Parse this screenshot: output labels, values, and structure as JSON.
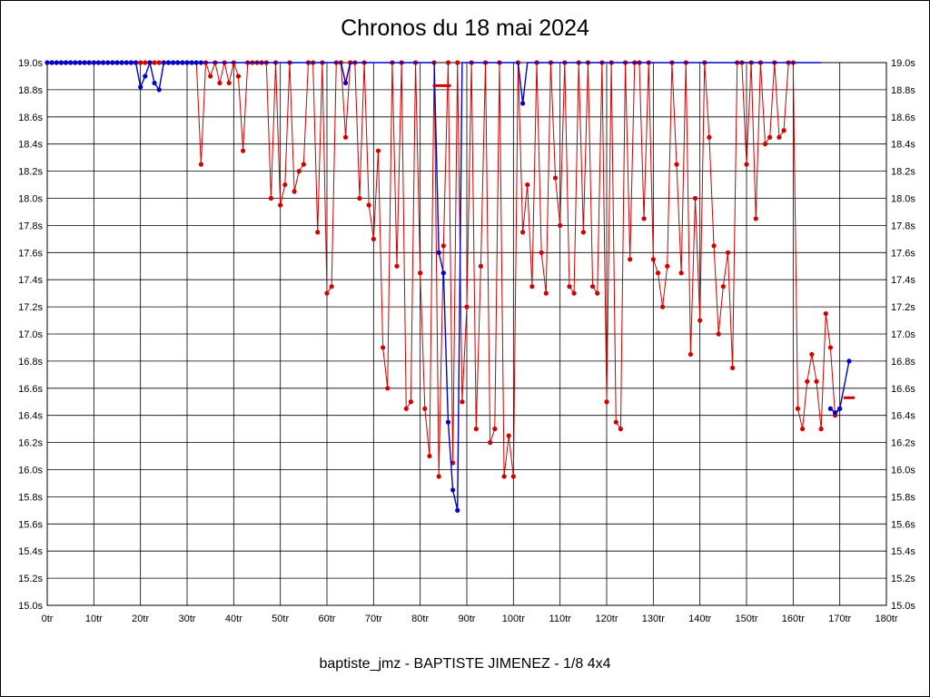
{
  "title": "Chronos du 18 mai 2024",
  "footer": {
    "caption": "baptiste_jmz - BAPTISTE JIMENEZ - 1/8 4x4"
  },
  "chart_data": {
    "type": "line",
    "title": "Chronos du 18 mai 2024",
    "x_unit": "tr",
    "y_unit": "s",
    "xlim": [
      0,
      180
    ],
    "ylim": [
      15.0,
      19.0
    ],
    "y_step": 0.2,
    "grid": true,
    "x_ticks": [
      "0tr",
      "10tr",
      "20tr",
      "30tr",
      "40tr",
      "50tr",
      "60tr",
      "70tr",
      "80tr",
      "90tr",
      "100tr",
      "110tr",
      "120tr",
      "130tr",
      "140tr",
      "150tr",
      "160tr",
      "170tr",
      "180tr"
    ],
    "y_ticks": [
      "19.0s",
      "18.8s",
      "18.6s",
      "18.4s",
      "18.2s",
      "18.0s",
      "17.8s",
      "17.6s",
      "17.4s",
      "17.2s",
      "17.0s",
      "16.8s",
      "16.6s",
      "16.4s",
      "16.2s",
      "16.0s",
      "15.8s",
      "15.6s",
      "15.4s",
      "15.2s",
      "15.0s"
    ],
    "colors": {
      "grid": "#000000",
      "red": "#d10000",
      "blue": "#0000cd"
    },
    "series": [
      {
        "name": "lap-times-red",
        "color": "#d10000",
        "values": [
          19,
          19,
          19,
          19,
          19,
          19,
          19,
          19,
          19,
          19,
          19,
          19,
          19,
          19,
          19,
          19,
          19,
          19,
          19,
          19,
          19,
          19,
          19,
          19,
          19,
          19,
          19,
          19,
          19,
          19,
          19,
          19,
          19,
          18.25,
          19,
          18.9,
          19,
          18.85,
          19,
          18.85,
          19,
          18.9,
          18.35,
          19,
          19,
          19,
          19,
          19,
          18.0,
          19,
          17.95,
          18.1,
          19,
          18.05,
          18.2,
          18.25,
          19,
          19,
          17.75,
          19,
          17.3,
          17.35,
          19,
          19,
          18.45,
          19,
          19,
          18.0,
          19,
          17.95,
          17.7,
          18.35,
          16.9,
          16.6,
          19,
          17.5,
          19,
          16.45,
          16.5,
          19,
          17.45,
          16.45,
          16.1,
          19,
          15.95,
          17.65,
          19,
          16.05,
          19,
          16.5,
          17.2,
          19,
          16.3,
          17.5,
          19,
          16.2,
          16.3,
          19,
          15.95,
          16.25,
          15.95,
          19,
          17.75,
          18.1,
          17.35,
          19,
          17.6,
          17.3,
          19,
          18.15,
          17.8,
          19,
          17.35,
          17.3,
          19,
          17.75,
          19,
          17.35,
          17.3,
          19,
          16.5,
          19,
          16.35,
          16.3,
          19,
          17.55,
          19,
          19,
          17.85,
          19,
          17.55,
          17.45,
          17.2,
          17.5,
          19,
          18.25,
          17.45,
          19,
          16.85,
          18.0,
          17.1,
          19,
          18.45,
          17.65,
          17.0,
          17.35,
          17.6,
          16.75,
          19,
          19,
          18.25,
          19,
          17.85,
          19,
          18.4,
          18.45,
          19,
          18.45,
          18.5,
          19,
          19,
          16.45,
          16.3,
          16.65,
          16.85,
          16.65,
          16.3,
          17.15,
          16.9,
          16.4,
          16.45
        ]
      },
      {
        "name": "lap-times-blue",
        "color": "#0000cd",
        "segments": [
          [
            [
              0,
              19,
              1
            ],
            [
              1,
              19,
              1
            ],
            [
              2,
              19,
              1
            ],
            [
              3,
              19,
              1
            ],
            [
              4,
              19,
              1
            ],
            [
              5,
              19,
              1
            ],
            [
              6,
              19,
              1
            ],
            [
              7,
              19,
              1
            ],
            [
              8,
              19,
              1
            ],
            [
              9,
              19,
              1
            ],
            [
              10,
              19,
              1
            ],
            [
              11,
              19,
              1
            ],
            [
              12,
              19,
              1
            ],
            [
              13,
              19,
              1
            ],
            [
              14,
              19,
              1
            ],
            [
              15,
              19,
              1
            ],
            [
              16,
              19,
              1
            ],
            [
              17,
              19,
              1
            ],
            [
              18,
              19,
              1
            ],
            [
              19,
              19,
              1
            ],
            [
              20,
              18.82,
              1
            ],
            [
              21,
              18.9,
              1
            ],
            [
              22,
              19,
              1
            ],
            [
              23,
              18.85,
              1
            ],
            [
              24,
              18.8,
              1
            ],
            [
              25,
              19,
              1
            ],
            [
              26,
              19,
              1
            ],
            [
              27,
              19,
              1
            ],
            [
              28,
              19,
              1
            ],
            [
              29,
              19,
              1
            ],
            [
              30,
              19,
              1
            ],
            [
              31,
              19,
              1
            ],
            [
              32,
              19,
              1
            ],
            [
              33,
              19,
              1
            ],
            [
              63,
              19,
              0
            ],
            [
              64,
              18.85,
              1
            ],
            [
              65,
              19,
              0
            ],
            [
              83,
              19,
              0
            ],
            [
              84,
              17.6,
              1
            ],
            [
              85,
              17.45,
              1
            ],
            [
              86,
              16.35,
              1
            ],
            [
              87,
              15.85,
              1
            ],
            [
              88,
              15.7,
              1
            ],
            [
              89,
              19,
              0
            ],
            [
              101,
              19,
              0
            ],
            [
              102,
              18.7,
              1
            ],
            [
              103,
              19,
              0
            ],
            [
              166,
              19,
              0
            ]
          ],
          [
            [
              168,
              16.45,
              1
            ],
            [
              169,
              16.42,
              1
            ],
            [
              170,
              16.45,
              1
            ],
            [
              172,
              16.8,
              1
            ]
          ]
        ]
      }
    ],
    "reference_segments": [
      {
        "x_start": 82.7,
        "x_end": 86.6,
        "y": 18.83,
        "color": "#d10000"
      },
      {
        "x_start": 170.8,
        "x_end": 173.2,
        "y": 16.53,
        "color": "#d10000"
      }
    ]
  }
}
